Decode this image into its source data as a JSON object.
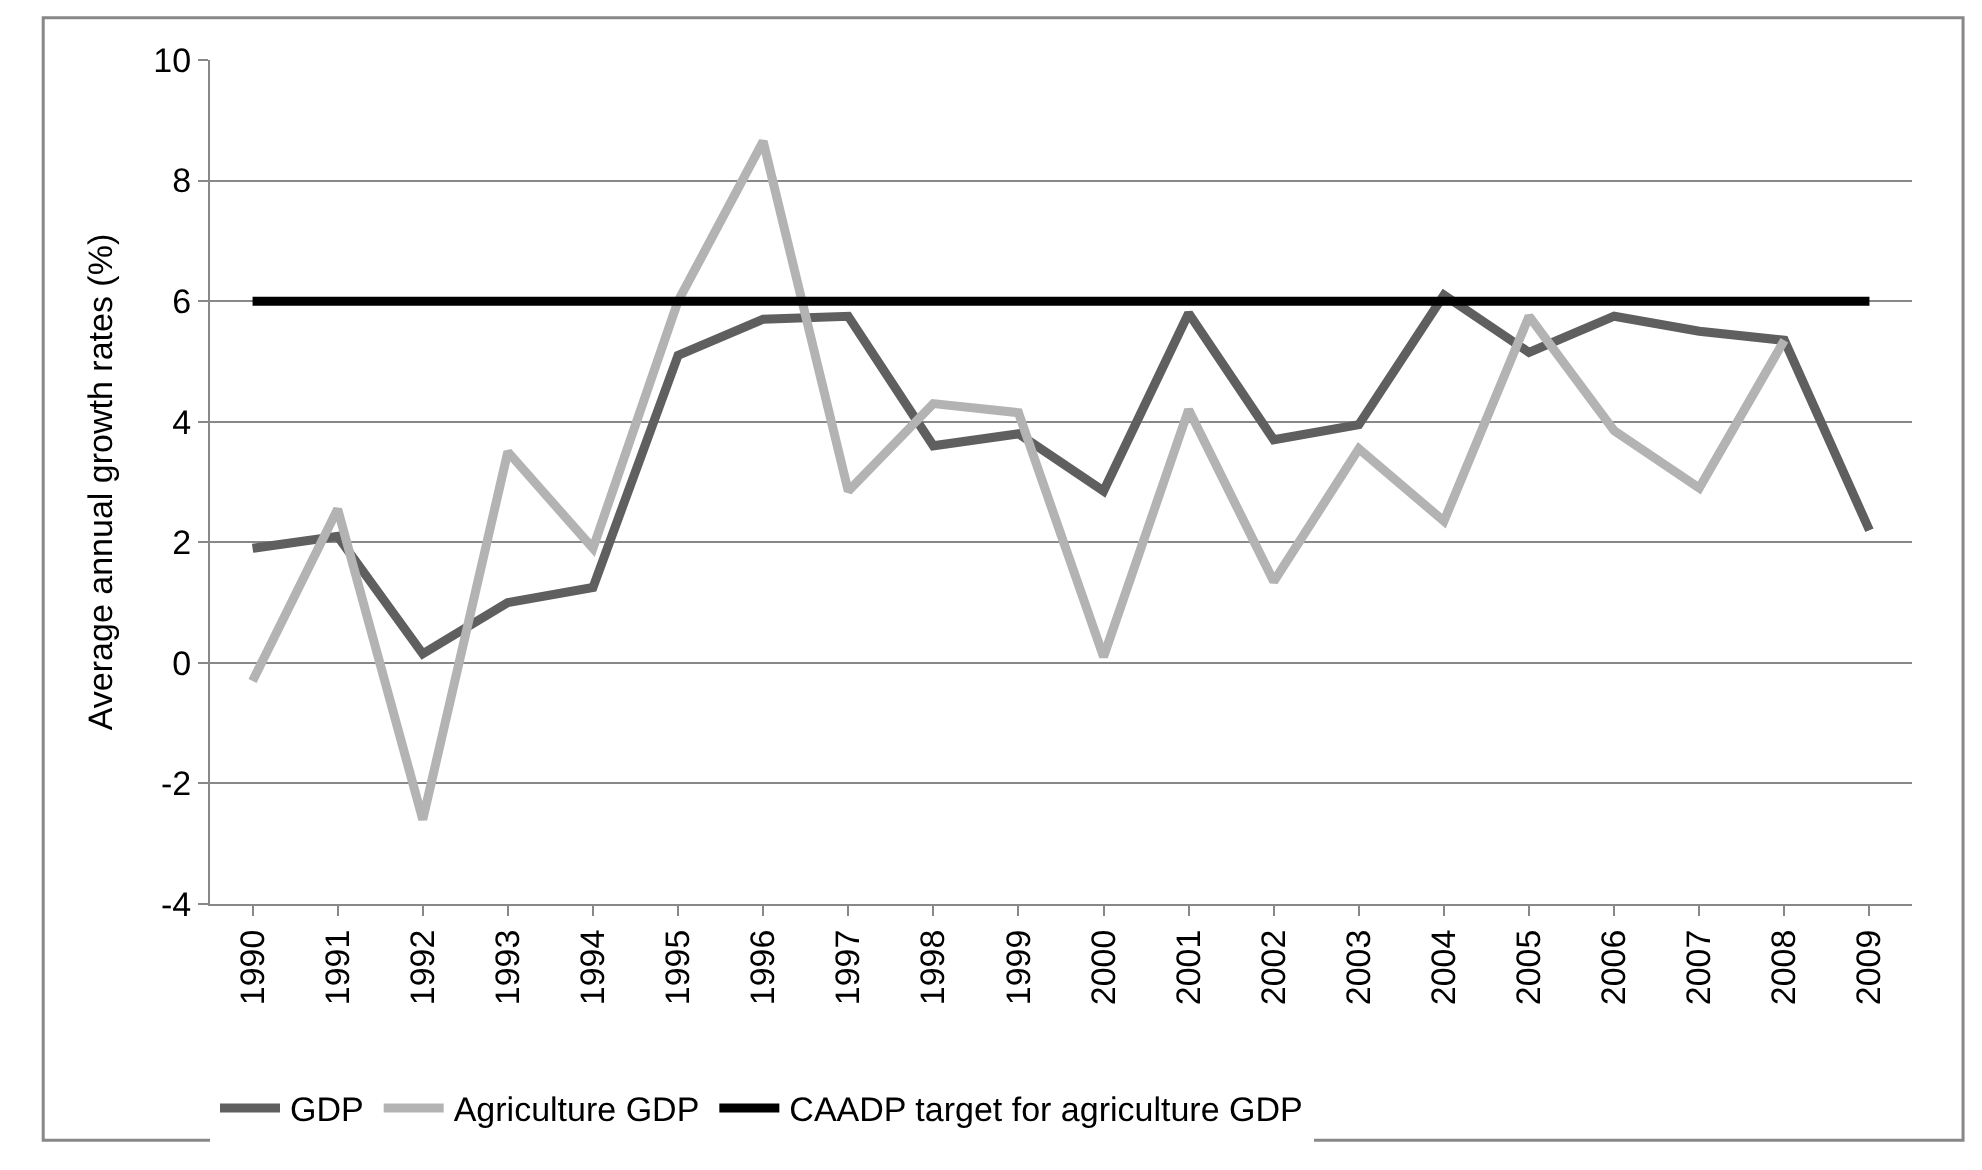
{
  "chart_data": {
    "type": "line",
    "ylabel": "Average annual growth rates (%)",
    "categories": [
      "1990",
      "1991",
      "1992",
      "1993",
      "1994",
      "1995",
      "1996",
      "1997",
      "1998",
      "1999",
      "2000",
      "2001",
      "2002",
      "2003",
      "2004",
      "2005",
      "2006",
      "2007",
      "2008",
      "2009"
    ],
    "series": [
      {
        "name": "GDP",
        "color": "#5f5f5f",
        "values": [
          1.9,
          2.1,
          0.15,
          1.0,
          1.25,
          5.1,
          5.7,
          5.75,
          3.6,
          3.8,
          2.85,
          5.8,
          3.7,
          3.95,
          6.1,
          5.15,
          5.75,
          5.5,
          5.35,
          2.2
        ]
      },
      {
        "name": "Agriculture GDP",
        "color": "#b3b3b3",
        "values": [
          -0.3,
          2.55,
          -2.6,
          3.5,
          1.9,
          6.0,
          8.65,
          2.85,
          4.3,
          4.15,
          0.1,
          4.2,
          1.35,
          3.55,
          2.35,
          5.75,
          3.85,
          2.9,
          5.35,
          null
        ]
      },
      {
        "name": "CAADP target for agriculture GDP",
        "color": "#000000",
        "values": [
          6,
          6,
          6,
          6,
          6,
          6,
          6,
          6,
          6,
          6,
          6,
          6,
          6,
          6,
          6,
          6,
          6,
          6,
          6,
          6
        ]
      }
    ],
    "ylim": [
      -4,
      10
    ],
    "yticks": [
      -4,
      -2,
      0,
      2,
      4,
      6,
      8,
      10
    ],
    "grid": "y",
    "legend": "bottom",
    "marker": "none",
    "line_style": "solid"
  }
}
